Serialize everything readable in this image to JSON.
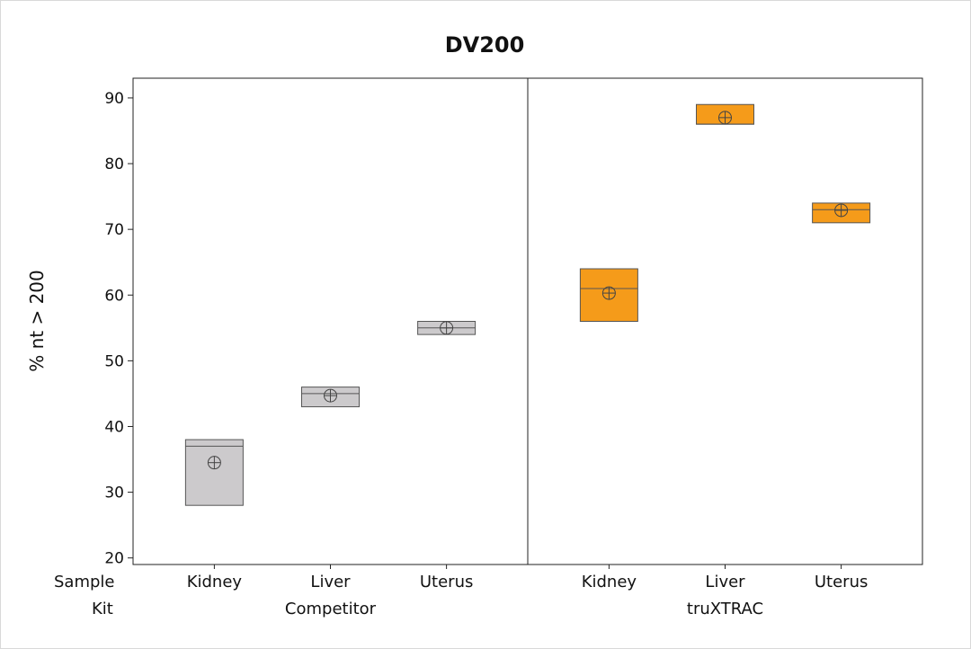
{
  "chart_data": {
    "type": "boxplot",
    "title": "DV200",
    "ylabel": "% nt > 200",
    "xlabel": "",
    "ylim": [
      19,
      93
    ],
    "yticks": [
      20,
      30,
      40,
      50,
      60,
      70,
      80,
      90
    ],
    "row_labels": {
      "sample": "Sample",
      "kit": "Kit"
    },
    "grid": false,
    "legend": "none",
    "panels": [
      {
        "kit": "Competitor",
        "color": "#cccacc",
        "boxes": [
          {
            "sample": "Kidney",
            "q1": 28,
            "median": 37,
            "q3": 38,
            "mean": 34.5
          },
          {
            "sample": "Liver",
            "q1": 43,
            "median": 45,
            "q3": 46,
            "mean": 44.7
          },
          {
            "sample": "Uterus",
            "q1": 54,
            "median": 55,
            "q3": 56,
            "mean": 55
          }
        ]
      },
      {
        "kit": "truXTRAC",
        "color": "#f59b1a",
        "boxes": [
          {
            "sample": "Kidney",
            "q1": 56,
            "median": 61,
            "q3": 64,
            "mean": 60.3
          },
          {
            "sample": "Liver",
            "q1": 86,
            "median": 86,
            "q3": 89,
            "mean": 87
          },
          {
            "sample": "Uterus",
            "q1": 71,
            "median": 73,
            "q3": 74,
            "mean": 72.9
          }
        ]
      }
    ]
  }
}
